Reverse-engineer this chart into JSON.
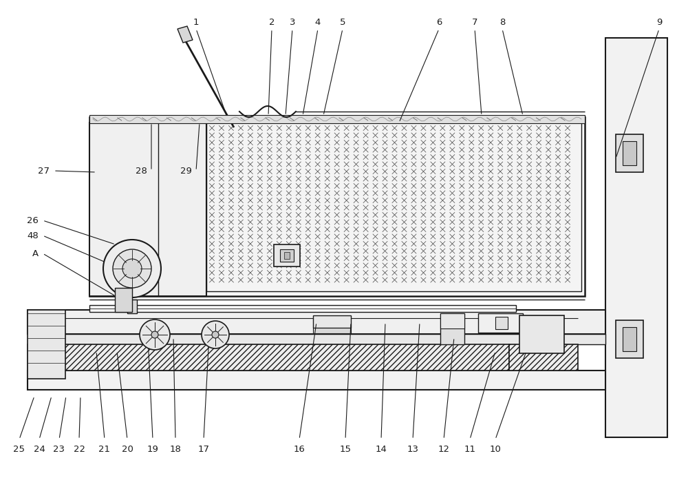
{
  "bg_color": "#ffffff",
  "line_color": "#1a1a1a",
  "label_color": "#1a1a1a",
  "fig_width": 10.0,
  "fig_height": 6.97,
  "dpi": 100
}
